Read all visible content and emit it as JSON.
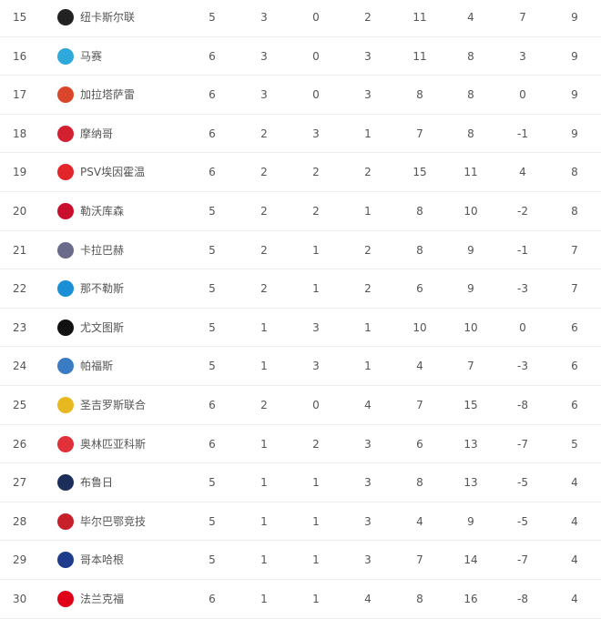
{
  "columns_order": [
    "played",
    "won",
    "drawn",
    "lost",
    "goals_for",
    "goals_against",
    "goal_diff",
    "points"
  ],
  "rows": [
    {
      "rank": "15",
      "team": "纽卡斯尔联",
      "logo": "newcastle-crest-icon",
      "color": "#222222",
      "stats": [
        "5",
        "3",
        "0",
        "2",
        "11",
        "4",
        "7",
        "9"
      ]
    },
    {
      "rank": "16",
      "team": "马赛",
      "logo": "marseille-crest-icon",
      "color": "#2fa8dc",
      "stats": [
        "6",
        "3",
        "0",
        "3",
        "11",
        "8",
        "3",
        "9"
      ]
    },
    {
      "rank": "17",
      "team": "加拉塔萨雷",
      "logo": "galatasaray-crest-icon",
      "color": "#d9462a",
      "stats": [
        "6",
        "3",
        "0",
        "3",
        "8",
        "8",
        "0",
        "9"
      ]
    },
    {
      "rank": "18",
      "team": "摩纳哥",
      "logo": "monaco-crest-icon",
      "color": "#d22030",
      "stats": [
        "6",
        "2",
        "3",
        "1",
        "7",
        "8",
        "-1",
        "9"
      ]
    },
    {
      "rank": "19",
      "team": "PSV埃因霍温",
      "logo": "psv-crest-icon",
      "color": "#e2242b",
      "stats": [
        "6",
        "2",
        "2",
        "2",
        "15",
        "11",
        "4",
        "8"
      ]
    },
    {
      "rank": "20",
      "team": "勒沃库森",
      "logo": "leverkusen-crest-icon",
      "color": "#c8102e",
      "stats": [
        "5",
        "2",
        "2",
        "1",
        "8",
        "10",
        "-2",
        "8"
      ]
    },
    {
      "rank": "21",
      "team": "卡拉巴赫",
      "logo": "qarabag-crest-icon",
      "color": "#6a6a8a",
      "stats": [
        "5",
        "2",
        "1",
        "2",
        "8",
        "9",
        "-1",
        "7"
      ]
    },
    {
      "rank": "22",
      "team": "那不勒斯",
      "logo": "napoli-crest-icon",
      "color": "#1a8fd6",
      "stats": [
        "5",
        "2",
        "1",
        "2",
        "6",
        "9",
        "-3",
        "7"
      ]
    },
    {
      "rank": "23",
      "team": "尤文图斯",
      "logo": "juventus-crest-icon",
      "color": "#111111",
      "stats": [
        "5",
        "1",
        "3",
        "1",
        "10",
        "10",
        "0",
        "6"
      ]
    },
    {
      "rank": "24",
      "team": "帕福斯",
      "logo": "pafos-crest-icon",
      "color": "#3a7cc4",
      "stats": [
        "5",
        "1",
        "3",
        "1",
        "4",
        "7",
        "-3",
        "6"
      ]
    },
    {
      "rank": "25",
      "team": "圣吉罗斯联合",
      "logo": "union-sg-crest-icon",
      "color": "#e8b820",
      "stats": [
        "6",
        "2",
        "0",
        "4",
        "7",
        "15",
        "-8",
        "6"
      ]
    },
    {
      "rank": "26",
      "team": "奥林匹亚科斯",
      "logo": "olympiacos-crest-icon",
      "color": "#e0303a",
      "stats": [
        "6",
        "1",
        "2",
        "3",
        "6",
        "13",
        "-7",
        "5"
      ]
    },
    {
      "rank": "27",
      "team": "布鲁日",
      "logo": "club-brugge-crest-icon",
      "color": "#1c2f5a",
      "stats": [
        "5",
        "1",
        "1",
        "3",
        "8",
        "13",
        "-5",
        "4"
      ]
    },
    {
      "rank": "28",
      "team": "毕尔巴鄂竞技",
      "logo": "athletic-bilbao-crest-icon",
      "color": "#c8202a",
      "stats": [
        "5",
        "1",
        "1",
        "3",
        "4",
        "9",
        "-5",
        "4"
      ]
    },
    {
      "rank": "29",
      "team": "哥本哈根",
      "logo": "copenhagen-crest-icon",
      "color": "#1f3c8c",
      "stats": [
        "5",
        "1",
        "1",
        "3",
        "7",
        "14",
        "-7",
        "4"
      ]
    },
    {
      "rank": "30",
      "team": "法兰克福",
      "logo": "frankfurt-crest-icon",
      "color": "#e1001a",
      "stats": [
        "6",
        "1",
        "1",
        "4",
        "8",
        "16",
        "-8",
        "4"
      ]
    }
  ]
}
